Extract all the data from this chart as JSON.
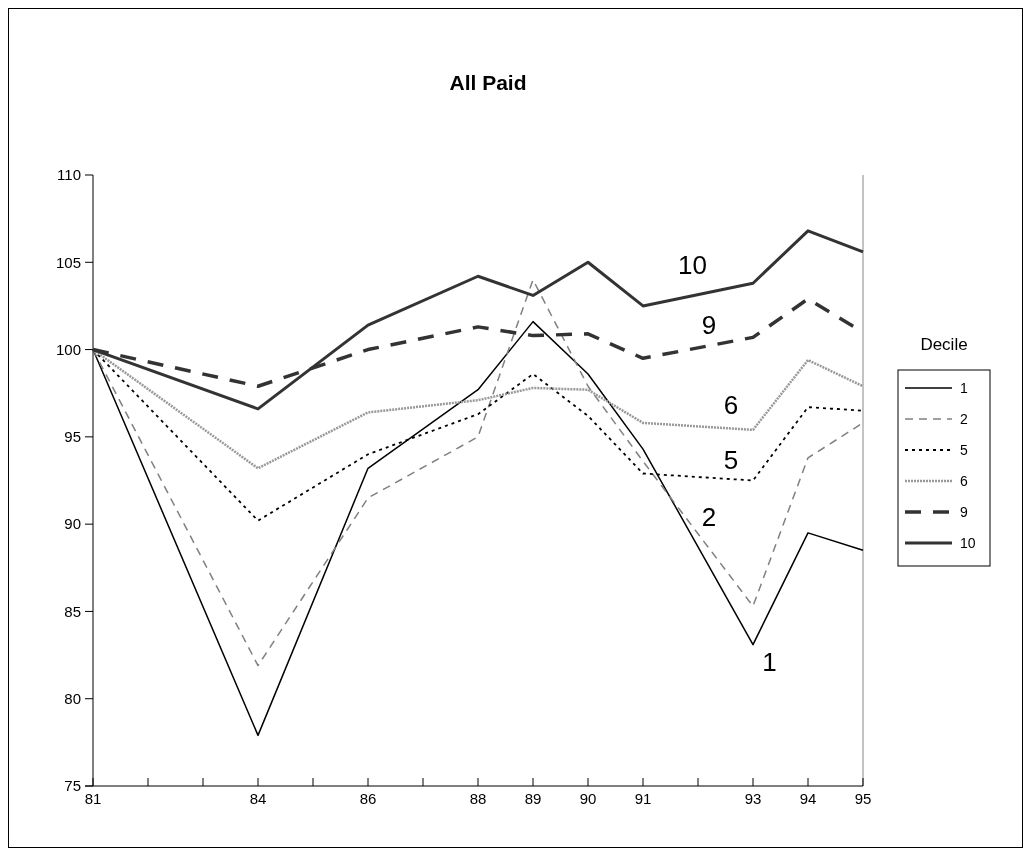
{
  "chart_data": {
    "type": "line",
    "title": "All Paid",
    "legend_title": "Decile",
    "legend": "right",
    "x": [
      81,
      84,
      86,
      88,
      89,
      90,
      91,
      93,
      94,
      95
    ],
    "xlim": [
      81,
      95
    ],
    "xticks": [
      81,
      {
        "value": 82,
        "label": null
      },
      {
        "value": 83,
        "label": null
      },
      84,
      {
        "value": 85,
        "label": null
      },
      86,
      {
        "value": 87,
        "label": null
      },
      88,
      89,
      90,
      91,
      {
        "value": 92,
        "label": null
      },
      93,
      94,
      95
    ],
    "ylim": [
      75,
      110
    ],
    "yticks": [
      75,
      80,
      85,
      90,
      95,
      100,
      105,
      110
    ],
    "grid": false,
    "series": [
      {
        "name": "1",
        "color": "#000000",
        "line_style": "solid",
        "values": [
          100,
          77.9,
          93.2,
          97.7,
          101.6,
          98.6,
          94.3,
          83.1,
          89.5,
          88.5
        ]
      },
      {
        "name": "2",
        "color": "#808080",
        "line_style": "dashed",
        "values": [
          100,
          81.9,
          91.5,
          95.0,
          104.0,
          97.9,
          93.6,
          85.3,
          93.8,
          95.8
        ]
      },
      {
        "name": "5",
        "color": "#000000",
        "line_style": "dotted",
        "values": [
          100,
          90.2,
          94.0,
          96.3,
          98.6,
          96.2,
          92.9,
          92.5,
          96.7,
          96.5
        ]
      },
      {
        "name": "6",
        "color": "#999999",
        "line_style": "dotted",
        "values": [
          100,
          93.2,
          96.4,
          97.1,
          97.8,
          97.7,
          95.8,
          95.4,
          99.4,
          97.9
        ]
      },
      {
        "name": "9",
        "color": "#333333",
        "line_style": "dashed",
        "values": [
          100,
          97.9,
          100.0,
          101.3,
          100.8,
          100.9,
          99.5,
          100.7,
          102.9,
          101.0
        ]
      },
      {
        "name": "10",
        "color": "#333333",
        "line_style": "solid",
        "values": [
          100,
          96.6,
          101.4,
          104.2,
          103.1,
          105.0,
          102.5,
          103.8,
          106.8,
          105.6
        ]
      }
    ]
  }
}
